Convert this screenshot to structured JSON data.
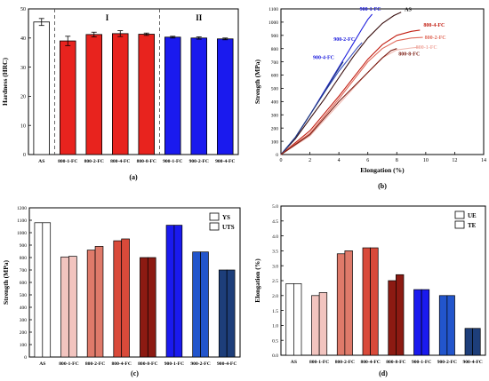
{
  "colors": {
    "as_fill": "#ffffff",
    "red": "#e8231e",
    "blue": "#1a1aee",
    "light_pink": "#f2c4bf",
    "salmon": "#df7a6a",
    "red_mid": "#d94a3a",
    "dark_red": "#8c1a12",
    "blue_mid": "#2255cc",
    "navy": "#1d3e7a",
    "grid_dash": "#444444"
  },
  "chart_data": [
    {
      "id": "a",
      "type": "bar",
      "panel_label": "(a)",
      "ylabel": "Hardness (HRC)",
      "ylim": [
        0,
        50
      ],
      "yticks": [
        0,
        10,
        20,
        30,
        40,
        50
      ],
      "categories": [
        "AS",
        "800-1-FC",
        "800-2-FC",
        "800-4-FC",
        "800-8-FC",
        "900-1-FC",
        "900-2-FC",
        "900-4-FC"
      ],
      "values": [
        45.5,
        39.0,
        41.2,
        41.5,
        41.3,
        40.3,
        40.0,
        39.7
      ],
      "errors": [
        1.2,
        1.6,
        0.8,
        1.0,
        0.4,
        0.3,
        0.4,
        0.3
      ],
      "group_labels": [
        "I",
        "II"
      ],
      "grid": false
    },
    {
      "id": "b",
      "type": "line",
      "panel_label": "(b)",
      "xlabel": "Elongation (%)",
      "ylabel": "Strength (MPa)",
      "xlim": [
        0,
        14
      ],
      "ylim": [
        0,
        1100
      ],
      "xticks": [
        0,
        2,
        4,
        6,
        8,
        10,
        12,
        14
      ],
      "yticks": [
        0,
        100,
        200,
        300,
        400,
        500,
        600,
        700,
        800,
        900,
        1000,
        1100
      ],
      "series": [
        {
          "name": "AS",
          "color": "#3a1010",
          "x": [
            0,
            1,
            2,
            3,
            4,
            5,
            6,
            7,
            7.8,
            8.3
          ],
          "y": [
            0,
            120,
            270,
            420,
            580,
            740,
            880,
            990,
            1050,
            1075
          ]
        },
        {
          "name": "900-1-FC",
          "color": "#2020dd",
          "x": [
            0,
            1,
            2,
            3,
            4,
            5,
            5.6,
            6.0,
            6.3
          ],
          "y": [
            0,
            130,
            300,
            480,
            660,
            840,
            950,
            1020,
            1060
          ]
        },
        {
          "name": "900-2-FC",
          "color": "#3a4fbf",
          "x": [
            0,
            1,
            2,
            3,
            4,
            4.8,
            5.3,
            5.6
          ],
          "y": [
            0,
            130,
            300,
            470,
            630,
            740,
            810,
            845
          ]
        },
        {
          "name": "900-4-FC",
          "color": "#203a78",
          "x": [
            0,
            1,
            2,
            3,
            3.6,
            4.0,
            4.3
          ],
          "y": [
            0,
            130,
            300,
            470,
            580,
            650,
            700
          ]
        },
        {
          "name": "800-4-FC",
          "color": "#c21e12",
          "x": [
            0,
            2,
            4,
            6,
            7,
            8,
            9,
            9.6
          ],
          "y": [
            0,
            180,
            440,
            720,
            830,
            900,
            930,
            940
          ]
        },
        {
          "name": "800-2-FC",
          "color": "#e06a5a",
          "x": [
            0,
            2,
            4,
            6,
            7,
            8,
            9,
            9.8
          ],
          "y": [
            0,
            160,
            420,
            700,
            800,
            860,
            880,
            885
          ]
        },
        {
          "name": "800-1-FC",
          "color": "#f0b8b0",
          "x": [
            0,
            2,
            4,
            6,
            7,
            8,
            9,
            9.5
          ],
          "y": [
            0,
            140,
            380,
            620,
            730,
            790,
            805,
            810
          ]
        },
        {
          "name": "800-8-FC",
          "color": "#7a1c12",
          "x": [
            0,
            2,
            4,
            6,
            7,
            7.6,
            8.0
          ],
          "y": [
            0,
            150,
            400,
            620,
            730,
            785,
            800
          ]
        }
      ],
      "grid": false
    },
    {
      "id": "c",
      "type": "bar",
      "panel_label": "(c)",
      "ylabel": "Strength (MPa)",
      "ylim": [
        0,
        1200
      ],
      "yticks": [
        0,
        100,
        200,
        300,
        400,
        500,
        600,
        700,
        800,
        900,
        1000,
        1100,
        1200
      ],
      "categories": [
        "AS",
        "800-1-FC",
        "800-2-FC",
        "800-4-FC",
        "800-8-FC",
        "900-1-FC",
        "900-2-FC",
        "900-4-FC"
      ],
      "series": [
        {
          "name": "YS",
          "values": [
            1080,
            805,
            860,
            935,
            800,
            1060,
            845,
            700
          ]
        },
        {
          "name": "UTS",
          "values": [
            1080,
            810,
            890,
            950,
            800,
            1060,
            845,
            700
          ]
        }
      ],
      "legend": "top-right",
      "grid": false
    },
    {
      "id": "d",
      "type": "bar",
      "panel_label": "(d)",
      "ylabel": "Elongation (%)",
      "ylim": [
        0,
        5.0
      ],
      "yticks": [
        0.0,
        0.5,
        1.0,
        1.5,
        2.0,
        2.5,
        3.0,
        3.5,
        4.0,
        4.5,
        5.0
      ],
      "categories": [
        "AS",
        "800-1-FC",
        "800-2-FC",
        "800-4-FC",
        "800-8-FC",
        "900-1-FC",
        "900-2-FC",
        "900-4-FC"
      ],
      "series": [
        {
          "name": "UE",
          "values": [
            2.4,
            2.0,
            3.4,
            3.6,
            2.5,
            2.2,
            2.0,
            0.9
          ]
        },
        {
          "name": "TE",
          "values": [
            2.4,
            2.1,
            3.5,
            3.6,
            2.7,
            2.2,
            2.0,
            0.9
          ]
        }
      ],
      "legend": "top-right",
      "grid": false
    }
  ]
}
